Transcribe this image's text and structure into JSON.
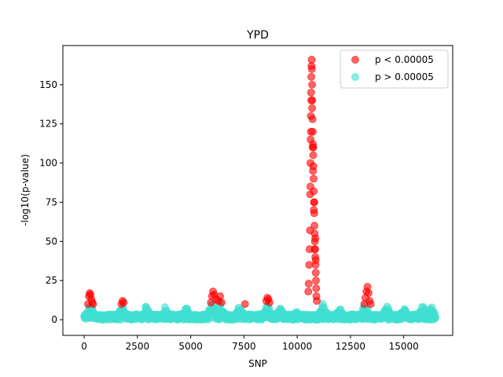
{
  "chart_data": {
    "type": "scatter",
    "title": "YPD",
    "xlabel": "SNP",
    "ylabel": "-log10(p-value)",
    "xlim": [
      -1000,
      17300
    ],
    "ylim": [
      -10,
      175
    ],
    "xticks": [
      0,
      2500,
      5000,
      7500,
      10000,
      12500,
      15000
    ],
    "xtick_labels": [
      "0",
      "2500",
      "5000",
      "7500",
      "10000",
      "12500",
      "15000"
    ],
    "yticks": [
      0,
      25,
      50,
      75,
      100,
      125,
      150
    ],
    "ytick_labels": [
      "0",
      "25",
      "50",
      "75",
      "100",
      "125",
      "150"
    ],
    "legend_position": "top-right",
    "series": [
      {
        "name": "p < 0.00005",
        "color": "#ff0000",
        "points": [
          [
            180,
            10
          ],
          [
            220,
            15
          ],
          [
            260,
            17
          ],
          [
            300,
            16
          ],
          [
            340,
            13
          ],
          [
            380,
            11
          ],
          [
            420,
            10
          ],
          [
            1750,
            10
          ],
          [
            1800,
            12
          ],
          [
            1850,
            11
          ],
          [
            5950,
            11
          ],
          [
            6000,
            15
          ],
          [
            6050,
            18
          ],
          [
            6100,
            16
          ],
          [
            6200,
            13
          ],
          [
            6300,
            12
          ],
          [
            6380,
            15
          ],
          [
            6450,
            11
          ],
          [
            7550,
            10
          ],
          [
            8550,
            12
          ],
          [
            8600,
            14
          ],
          [
            8650,
            13
          ],
          [
            8700,
            11
          ],
          [
            10520,
            18
          ],
          [
            10540,
            23
          ],
          [
            10560,
            35
          ],
          [
            10580,
            45
          ],
          [
            10600,
            57
          ],
          [
            10610,
            80
          ],
          [
            10620,
            100
          ],
          [
            10630,
            115
          ],
          [
            10640,
            130
          ],
          [
            10650,
            145
          ],
          [
            10660,
            155
          ],
          [
            10670,
            162
          ],
          [
            10680,
            166
          ],
          [
            10690,
            160
          ],
          [
            10700,
            150
          ],
          [
            10710,
            140
          ],
          [
            10720,
            128
          ],
          [
            10730,
            120
          ],
          [
            10740,
            112
          ],
          [
            10750,
            105
          ],
          [
            10760,
            98
          ],
          [
            10770,
            90
          ],
          [
            10780,
            82
          ],
          [
            10790,
            75
          ],
          [
            10800,
            68
          ],
          [
            10810,
            60
          ],
          [
            10820,
            55
          ],
          [
            10830,
            50
          ],
          [
            10840,
            45
          ],
          [
            10850,
            40
          ],
          [
            10860,
            35
          ],
          [
            10870,
            30
          ],
          [
            10880,
            25
          ],
          [
            10890,
            20
          ],
          [
            10900,
            15
          ],
          [
            10920,
            12
          ],
          [
            10620,
            85
          ],
          [
            10640,
            120
          ],
          [
            10660,
            140
          ],
          [
            10700,
            135
          ],
          [
            10720,
            110
          ],
          [
            10740,
            95
          ],
          [
            10760,
            110
          ],
          [
            10780,
            70
          ],
          [
            10800,
            75
          ],
          [
            10820,
            45
          ],
          [
            10850,
            52
          ],
          [
            10870,
            38
          ],
          [
            13150,
            10
          ],
          [
            13200,
            14
          ],
          [
            13250,
            18
          ],
          [
            13300,
            21
          ],
          [
            13350,
            17
          ],
          [
            13400,
            12
          ],
          [
            13450,
            10
          ]
        ]
      },
      {
        "name": "p > 0.00005",
        "color": "#40e0d0",
        "baseline_range": [
          0,
          16500
        ],
        "peaks": [
          [
            300,
            9
          ],
          [
            1800,
            8
          ],
          [
            2900,
            7
          ],
          [
            3800,
            7
          ],
          [
            4800,
            6
          ],
          [
            6000,
            10
          ],
          [
            6400,
            9
          ],
          [
            7300,
            8
          ],
          [
            8600,
            8
          ],
          [
            9200,
            6
          ],
          [
            10000,
            5
          ],
          [
            11200,
            9
          ],
          [
            12000,
            6
          ],
          [
            13200,
            9
          ],
          [
            14200,
            8
          ],
          [
            15000,
            6
          ],
          [
            15900,
            8
          ],
          [
            16300,
            7
          ]
        ]
      }
    ]
  }
}
